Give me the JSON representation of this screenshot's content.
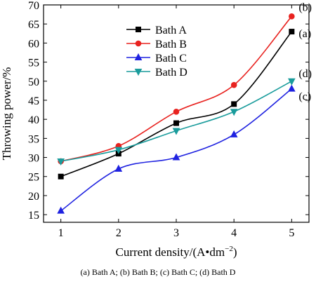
{
  "chart_data": {
    "type": "line",
    "xlabel": "Current density/(A•dm",
    "xlabel_sup": "−2",
    "xlabel_close": ")",
    "ylabel": "Throwing power/%",
    "xlim": [
      0.7,
      5.3
    ],
    "ylim": [
      13,
      70
    ],
    "xticks": [
      1,
      2,
      3,
      4,
      5
    ],
    "yticks": [
      15,
      20,
      25,
      30,
      35,
      40,
      45,
      50,
      55,
      60,
      65,
      70
    ],
    "grid": false,
    "legend_position": "upper-left",
    "x": [
      1,
      2,
      3,
      4,
      5
    ],
    "series": [
      {
        "name": "Bath A",
        "label": "(a)",
        "values": [
          25,
          31,
          39,
          44,
          63
        ],
        "color": "#000000",
        "marker": "square"
      },
      {
        "name": "Bath B",
        "label": "(b)",
        "values": [
          29,
          33,
          42,
          49,
          67
        ],
        "color": "#e8221f",
        "marker": "circle"
      },
      {
        "name": "Bath C",
        "label": "(c)",
        "values": [
          16,
          27,
          30,
          36,
          48
        ],
        "color": "#1f22e0",
        "marker": "triangle-up"
      },
      {
        "name": "Bath D",
        "label": "(d)",
        "values": [
          29,
          32,
          37,
          42,
          50
        ],
        "color": "#1a9c9c",
        "marker": "triangle-down"
      }
    ]
  },
  "caption": "(a) Bath A; (b) Bath B; (c) Bath C; (d) Bath D"
}
